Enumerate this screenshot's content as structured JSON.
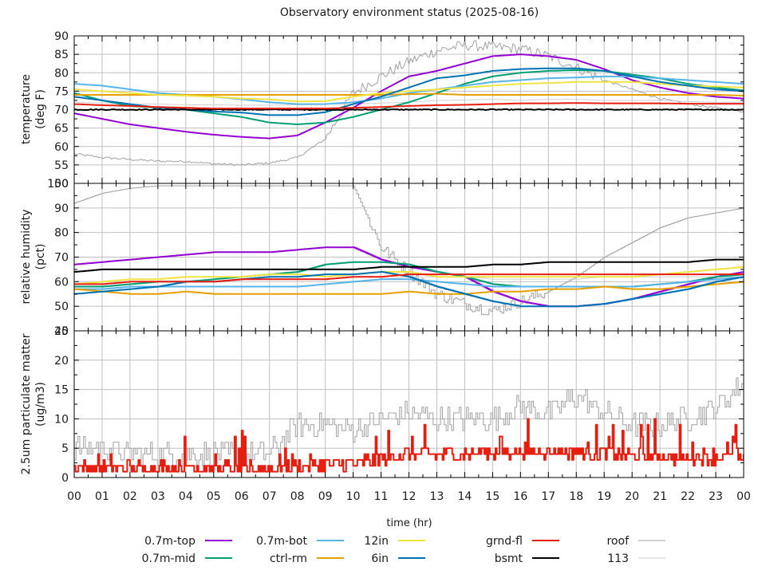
{
  "chart_data": {
    "type": "line",
    "title": "Observatory environment status (2025-08-16)",
    "xlabel": "time (hr)",
    "x_ticks": [
      "00",
      "01",
      "02",
      "03",
      "04",
      "05",
      "06",
      "07",
      "08",
      "09",
      "10",
      "11",
      "12",
      "13",
      "14",
      "15",
      "16",
      "17",
      "18",
      "19",
      "20",
      "21",
      "22",
      "23",
      "00"
    ],
    "xlim": [
      0,
      24
    ],
    "grid": true,
    "legend_placement": "bottom",
    "legend": [
      {
        "name": "0.7m-top",
        "color": "#9400d3"
      },
      {
        "name": "0.7m-mid",
        "color": "#009e73"
      },
      {
        "name": "0.7m-bot",
        "color": "#56b4e9"
      },
      {
        "name": "ctrl-rm",
        "color": "#e69f00"
      },
      {
        "name": "12in",
        "color": "#f0e442"
      },
      {
        "name": "6in",
        "color": "#0072b2"
      },
      {
        "name": "grnd-fl",
        "color": "#e51e10"
      },
      {
        "name": "bsmt",
        "color": "#000000"
      },
      {
        "name": "roof",
        "color": "#a0a0a0"
      },
      {
        "name": "113",
        "color": "#d0d0d0"
      }
    ],
    "panels": [
      {
        "id": "temperature",
        "ylabel": [
          "temperature",
          "(deg F)"
        ],
        "ylim": [
          50,
          90
        ],
        "y_ticks": [
          "50",
          "55",
          "60",
          "65",
          "70",
          "75",
          "80",
          "85",
          "90"
        ],
        "x_hours": [
          0,
          1,
          2,
          3,
          4,
          5,
          6,
          7,
          8,
          9,
          10,
          11,
          12,
          13,
          14,
          15,
          16,
          17,
          18,
          19,
          20,
          21,
          22,
          23,
          24
        ],
        "series": [
          {
            "name": "0.7m-top",
            "values": [
              69,
              67.5,
              66,
              65,
              64,
              63.2,
              62.6,
              62.2,
              63,
              66.5,
              70.5,
              75,
              79,
              80.5,
              82.5,
              84.5,
              85,
              84.5,
              83.5,
              81,
              78,
              76,
              74.5,
              73.5,
              73
            ]
          },
          {
            "name": "0.7m-mid",
            "values": [
              74.5,
              72.5,
              71,
              70.5,
              70,
              69,
              68,
              66.5,
              66,
              66.5,
              68,
              70,
              72,
              74.5,
              77,
              79,
              80,
              80.5,
              80.7,
              80.5,
              79.5,
              78.5,
              77,
              76,
              75.2
            ]
          },
          {
            "name": "0.7m-bot",
            "values": [
              77,
              76.5,
              75.5,
              74.5,
              74,
              73.5,
              72.8,
              72,
              71.5,
              71.5,
              72,
              73,
              74.5,
              75.5,
              76.5,
              77.5,
              78,
              78.5,
              78.7,
              79,
              79,
              78.5,
              78,
              77.5,
              77
            ]
          },
          {
            "name": "ctrl-rm",
            "values": [
              74,
              74,
              74,
              74,
              74,
              74,
              74,
              74,
              74,
              74,
              74,
              74,
              74.2,
              74.3,
              74,
              74,
              74,
              74,
              74,
              74,
              74,
              74,
              74,
              74,
              73.8
            ]
          },
          {
            "name": "12in",
            "values": [
              75.5,
              75,
              74.5,
              74,
              73.8,
              73.5,
              73,
              72.8,
              72.2,
              72.3,
              73.5,
              74.5,
              75,
              75.5,
              76,
              76.5,
              77,
              77.2,
              77.5,
              77.5,
              77.5,
              77,
              76.5,
              76.3,
              76
            ]
          },
          {
            "name": "6in",
            "values": [
              73.5,
              72.5,
              71.5,
              70.5,
              70,
              69.5,
              69.2,
              68.5,
              68.5,
              69.3,
              71.5,
              73.5,
              76,
              78.5,
              79.3,
              80.5,
              81,
              81.2,
              81.2,
              80.5,
              79,
              77.5,
              76.5,
              75.5,
              75
            ]
          },
          {
            "name": "grnd-fl",
            "values": [
              71.5,
              71.2,
              71,
              70.7,
              70.5,
              70.3,
              70.3,
              70.3,
              70.3,
              70.3,
              70.5,
              70.7,
              71,
              71.2,
              71.3,
              71.5,
              71.7,
              71.7,
              71.8,
              71.7,
              71.7,
              71.7,
              71.6,
              71.6,
              71.6
            ]
          },
          {
            "name": "bsmt",
            "values": [
              70,
              70,
              70,
              70,
              70,
              70,
              70,
              70,
              70,
              70,
              70,
              70,
              70,
              70,
              70,
              70,
              70,
              70,
              70,
              70,
              70,
              70,
              70,
              70,
              70
            ]
          },
          {
            "name": "roof",
            "values": [
              58,
              57,
              56.5,
              56,
              56,
              55.3,
              55,
              55.5,
              57,
              62,
              74.5,
              79,
              83,
              86,
              87.5,
              87,
              86.5,
              84.5,
              81.5,
              78,
              75.5,
              73,
              71.5,
              70.5,
              69.5
            ]
          },
          {
            "name": "113",
            "values": [
              72,
              71.8,
              71.5,
              71.5,
              71.3,
              71.3,
              71.2,
              71.2,
              71.3,
              71.5,
              71.5,
              71.8,
              72,
              72.5,
              72.6,
              72.8,
              72.5,
              72.8,
              72.8,
              72.5,
              72.5,
              72.5,
              72.2,
              72,
              72
            ]
          }
        ]
      },
      {
        "id": "humidity",
        "ylabel": [
          "relative humidity",
          "(pct)"
        ],
        "ylim": [
          40,
          100
        ],
        "y_ticks": [
          "40",
          "50",
          "60",
          "70",
          "80",
          "90",
          "100"
        ],
        "x_hours": [
          0,
          1,
          2,
          3,
          4,
          5,
          6,
          7,
          8,
          9,
          10,
          11,
          12,
          13,
          14,
          15,
          16,
          17,
          18,
          19,
          20,
          21,
          22,
          23,
          24
        ],
        "series": [
          {
            "name": "0.7m-top",
            "values": [
              67,
              68,
              69,
              70,
              71,
              72,
              72,
              72,
              73,
              74,
              74,
              69,
              66,
              64,
              62,
              56,
              52,
              50,
              50,
              51,
              53,
              56,
              59,
              62,
              64
            ]
          },
          {
            "name": "0.7m-mid",
            "values": [
              58,
              58,
              59,
              60,
              60,
              61,
              62,
              63,
              64,
              67,
              68,
              68,
              67,
              64,
              62,
              59,
              58,
              58,
              58,
              58,
              58,
              59,
              60,
              62,
              63
            ]
          },
          {
            "name": "0.7m-bot",
            "values": [
              57,
              57,
              58,
              58,
              58,
              58,
              58,
              58,
              58,
              59,
              60,
              61,
              61,
              60,
              59,
              58,
              58,
              58,
              58,
              58,
              58,
              59,
              60,
              61,
              62
            ]
          },
          {
            "name": "ctrl-rm",
            "values": [
              57,
              56,
              55,
              55,
              56,
              55,
              55,
              55,
              55,
              55,
              55,
              55,
              56,
              55,
              55,
              56,
              56,
              57,
              57,
              58,
              57,
              57,
              58,
              59,
              60
            ]
          },
          {
            "name": "12in",
            "values": [
              59,
              60,
              61,
              61,
              62,
              62,
              62,
              63,
              63,
              62,
              63,
              64,
              64,
              62,
              62,
              62,
              62,
              62,
              62,
              62,
              62,
              63,
              64,
              65,
              66
            ]
          },
          {
            "name": "6in",
            "values": [
              55,
              56,
              57,
              58,
              60,
              60,
              61,
              62,
              62,
              63,
              63,
              64,
              62,
              58,
              55,
              52,
              50,
              50,
              50,
              51,
              53,
              55,
              57,
              60,
              62
            ]
          },
          {
            "name": "grnd-fl",
            "values": [
              59,
              59,
              60,
              60,
              60,
              60,
              61,
              61,
              61,
              61,
              62,
              62,
              63,
              63,
              63,
              63,
              63,
              63,
              63,
              63,
              63,
              63,
              63,
              63,
              63
            ]
          },
          {
            "name": "bsmt",
            "values": [
              64,
              65,
              65,
              65,
              65,
              65,
              65,
              65,
              65,
              65,
              65,
              66,
              66,
              66,
              66,
              67,
              67,
              68,
              68,
              68,
              68,
              68,
              68,
              69,
              69
            ]
          },
          {
            "name": "roof",
            "values": [
              92,
              96,
              98,
              99,
              99,
              99,
              99,
              99,
              99,
              99,
              99,
              74,
              64,
              55,
              51,
              48,
              52,
              56,
              62,
              70,
              76,
              82,
              86,
              88,
              90
            ]
          },
          {
            "name": "113",
            "values": [
              60,
              60,
              60,
              60,
              60,
              60,
              60,
              60,
              60,
              60,
              60,
              61,
              62,
              62,
              62,
              61,
              61,
              61,
              61,
              62,
              62,
              62,
              62,
              62,
              62
            ]
          }
        ]
      },
      {
        "id": "particulate",
        "ylabel": [
          "2.5um particulate matter",
          "(ug/m3)"
        ],
        "ylim": [
          0,
          25
        ],
        "y_ticks": [
          "0",
          "5",
          "10",
          "15",
          "20",
          "25"
        ],
        "x_hours": [
          0,
          1,
          2,
          3,
          4,
          5,
          6,
          7,
          8,
          9,
          10,
          11,
          12,
          13,
          14,
          15,
          16,
          17,
          18,
          19,
          20,
          21,
          22,
          23,
          24
        ],
        "series": [
          {
            "name": "grnd-fl",
            "values": [
              1.5,
              1.5,
              1.6,
              1.7,
              1.8,
              1.6,
              1.6,
              1.5,
              1.8,
              2.2,
              2.3,
              3.5,
              4,
              4,
              4,
              4.3,
              4.5,
              4.5,
              4.5,
              4.2,
              3.8,
              3.7,
              3.5,
              3.6,
              3.5
            ]
          },
          {
            "name": "roof",
            "values": [
              5,
              5,
              4,
              4,
              4,
              4,
              4,
              4,
              9,
              9,
              8,
              10,
              11,
              10,
              10,
              10,
              12,
              11,
              14,
              11,
              9,
              9,
              10,
              12,
              16
            ]
          }
        ]
      }
    ]
  }
}
